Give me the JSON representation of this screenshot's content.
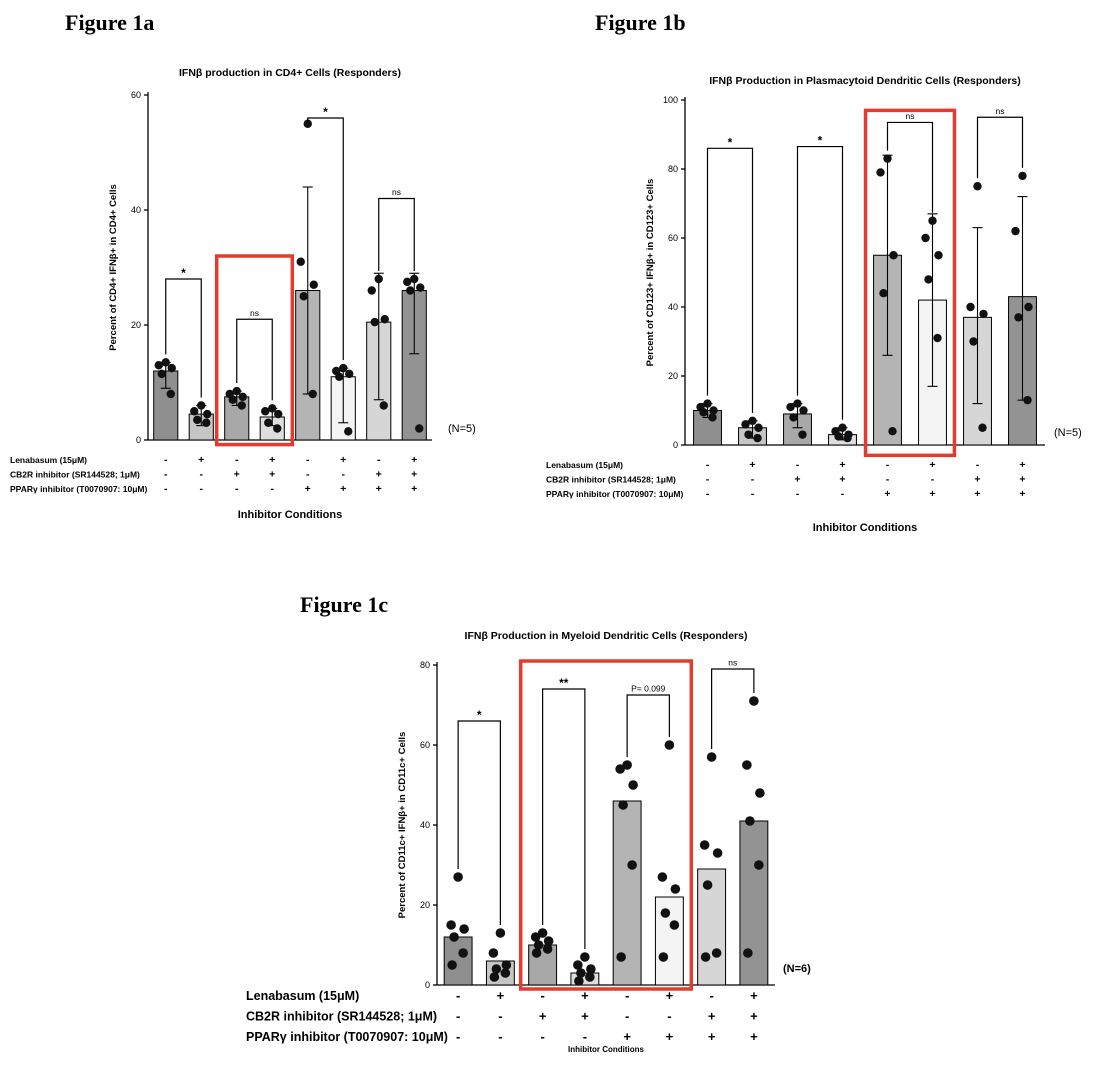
{
  "chart_data": [
    {
      "id": "fig1a",
      "type": "bar",
      "figure_label": "Figure 1a",
      "title": "IFNβ production in CD4+ Cells (Responders)",
      "ylabel": "Percent of CD4+ IFNβ+ in CD4+ Cells",
      "xlabel": "Inhibitor Conditions",
      "n_label": "(N=5)",
      "ylim": [
        0,
        60
      ],
      "yticks": [
        0,
        20,
        40,
        60
      ],
      "bar_means": [
        12,
        4.5,
        7.5,
        4,
        26,
        11,
        20.5,
        26
      ],
      "bar_errors": [
        [
          9,
          13.5
        ],
        [
          2.5,
          6
        ],
        [
          6,
          8.5
        ],
        [
          2.5,
          5.5
        ],
        [
          8,
          44
        ],
        [
          3,
          12.5
        ],
        [
          7,
          29
        ],
        [
          15,
          29
        ]
      ],
      "points": [
        [
          13.5,
          13,
          12.5,
          11.5,
          8
        ],
        [
          6,
          5,
          4.5,
          3.5,
          3
        ],
        [
          8.5,
          8,
          7.5,
          7,
          6
        ],
        [
          5.5,
          5,
          4.5,
          3,
          2
        ],
        [
          55,
          31,
          27,
          25,
          8
        ],
        [
          12.5,
          12,
          11.5,
          11,
          1.5
        ],
        [
          28,
          26,
          21,
          20.5,
          6
        ],
        [
          28,
          27.5,
          26.5,
          26,
          2
        ]
      ],
      "bar_fills": [
        "#8f8f8f",
        "#c6c6c6",
        "#a8a8a8",
        "#dedede",
        "#b4b4b4",
        "#f4f4f4",
        "#d6d6d6",
        "#939393"
      ],
      "significance": [
        {
          "from": 0,
          "to": 1,
          "label": "*",
          "y": 28
        },
        {
          "from": 2,
          "to": 3,
          "label": "ns",
          "y": 21
        },
        {
          "from": 4,
          "to": 5,
          "label": "*",
          "y": 56
        },
        {
          "from": 6,
          "to": 7,
          "label": "ns",
          "y": 42
        }
      ],
      "highlight_box": {
        "from": 2,
        "to": 3,
        "top": 32,
        "bottom": -0.8,
        "color": "#e43b2e"
      },
      "conditions": [
        {
          "label": "Lenabasum (15μM)",
          "values": [
            "-",
            "+",
            "-",
            "+",
            "-",
            "+",
            "-",
            "+"
          ]
        },
        {
          "label": "CB2R inhibitor (SR144528; 1μM)",
          "values": [
            "-",
            "-",
            "+",
            "+",
            "-",
            "-",
            "+",
            "+"
          ]
        },
        {
          "label": "PPARγ inhibitor (T0070907: 10μM)",
          "values": [
            "-",
            "-",
            "-",
            "-",
            "+",
            "+",
            "+",
            "+"
          ]
        }
      ]
    },
    {
      "id": "fig1b",
      "type": "bar",
      "figure_label": "Figure 1b",
      "title": "IFNβ Production in Plasmacytoid Dendritic Cells (Responders)",
      "ylabel": "Percent of CD123+ IFNβ+ in CD123+ Cells",
      "xlabel": "Inhibitor Conditions",
      "n_label": "(N=5)",
      "ylim": [
        0,
        100
      ],
      "yticks": [
        0,
        20,
        40,
        60,
        80,
        100
      ],
      "bar_means": [
        10,
        5,
        9,
        3,
        55,
        42,
        37,
        43
      ],
      "bar_errors": [
        [
          8,
          12
        ],
        [
          2,
          7
        ],
        [
          5,
          12
        ],
        [
          1.5,
          5
        ],
        [
          26,
          84
        ],
        [
          17,
          67
        ],
        [
          12,
          63
        ],
        [
          13,
          72
        ]
      ],
      "points": [
        [
          12,
          11,
          10,
          9.5,
          8
        ],
        [
          7,
          6,
          5,
          3,
          2
        ],
        [
          12,
          11,
          10,
          8,
          3
        ],
        [
          5,
          4,
          3,
          2.5,
          2
        ],
        [
          83,
          79,
          55,
          44,
          4
        ],
        [
          65,
          60,
          55,
          48,
          31
        ],
        [
          75,
          40,
          38,
          30,
          5
        ],
        [
          78,
          62,
          40,
          37,
          13
        ]
      ],
      "bar_fills": [
        "#8f8f8f",
        "#c6c6c6",
        "#a8a8a8",
        "#dedede",
        "#b4b4b4",
        "#f4f4f4",
        "#d6d6d6",
        "#939393"
      ],
      "significance": [
        {
          "from": 0,
          "to": 1,
          "label": "*",
          "y": 86
        },
        {
          "from": 2,
          "to": 3,
          "label": "*",
          "y": 86.5
        },
        {
          "from": 4,
          "to": 5,
          "label": "ns",
          "y": 93.5
        },
        {
          "from": 6,
          "to": 7,
          "label": "ns",
          "y": 95
        }
      ],
      "highlight_box": {
        "from": 4,
        "to": 5,
        "top": 97,
        "bottom": -3,
        "color": "#e43b2e"
      },
      "conditions": [
        {
          "label": "Lenabasum (15μM)",
          "values": [
            "-",
            "+",
            "-",
            "+",
            "-",
            "+",
            "-",
            "+"
          ]
        },
        {
          "label": "CB2R inhibitor (SR144528; 1μM)",
          "values": [
            "-",
            "-",
            "+",
            "+",
            "-",
            "-",
            "+",
            "+"
          ]
        },
        {
          "label": "PPARγ inhibitor (T0070907: 10μM)",
          "values": [
            "-",
            "-",
            "-",
            "-",
            "+",
            "+",
            "+",
            "+"
          ]
        }
      ]
    },
    {
      "id": "fig1c",
      "type": "bar",
      "figure_label": "Figure 1c",
      "title": "IFNβ Production in Myeloid Dendritic Cells (Responders)",
      "ylabel": "Percent of CD11c+ IFNβ+ in CD11c+ Cells",
      "xlabel": "Inhibitor Conditions",
      "n_label": "(N=6)",
      "ylim": [
        0,
        80
      ],
      "yticks": [
        0,
        20,
        40,
        60,
        80
      ],
      "bar_means": [
        12,
        6,
        10,
        3,
        46,
        22,
        29,
        41
      ],
      "bar_errors": null,
      "points": [
        [
          27,
          15,
          14,
          12,
          8,
          5
        ],
        [
          13,
          8,
          5,
          4,
          3,
          2
        ],
        [
          13,
          12,
          11,
          10,
          9,
          8
        ],
        [
          7,
          5,
          4,
          3,
          2,
          1
        ],
        [
          55,
          54,
          50,
          45,
          30,
          7
        ],
        [
          60,
          27,
          24,
          18,
          15,
          7
        ],
        [
          57,
          35,
          33,
          25,
          8,
          7
        ],
        [
          71,
          55,
          48,
          41,
          30,
          8
        ]
      ],
      "bar_fills": [
        "#8f8f8f",
        "#c6c6c6",
        "#a8a8a8",
        "#dedede",
        "#b4b4b4",
        "#f4f4f4",
        "#d6d6d6",
        "#939393"
      ],
      "significance": [
        {
          "from": 0,
          "to": 1,
          "label": "*",
          "y": 66
        },
        {
          "from": 2,
          "to": 3,
          "label": "**",
          "y": 74
        },
        {
          "from": 4,
          "to": 5,
          "label": "P= 0.099",
          "y": 72.5
        },
        {
          "from": 6,
          "to": 7,
          "label": "ns",
          "y": 79
        }
      ],
      "highlight_box": {
        "from": 2,
        "to": 5,
        "top": 81,
        "bottom": -1,
        "color": "#e43b2e"
      },
      "conditions": [
        {
          "label": "Lenabasum (15μM)",
          "values": [
            "-",
            "+",
            "-",
            "+",
            "-",
            "+",
            "-",
            "+"
          ]
        },
        {
          "label": "CB2R inhibitor (SR144528; 1μM)",
          "values": [
            "-",
            "-",
            "+",
            "+",
            "-",
            "-",
            "+",
            "+"
          ]
        },
        {
          "label": "PPARγ inhibitor (T0070907: 10μM)",
          "values": [
            "-",
            "-",
            "-",
            "-",
            "+",
            "+",
            "+",
            "+"
          ]
        }
      ]
    }
  ]
}
